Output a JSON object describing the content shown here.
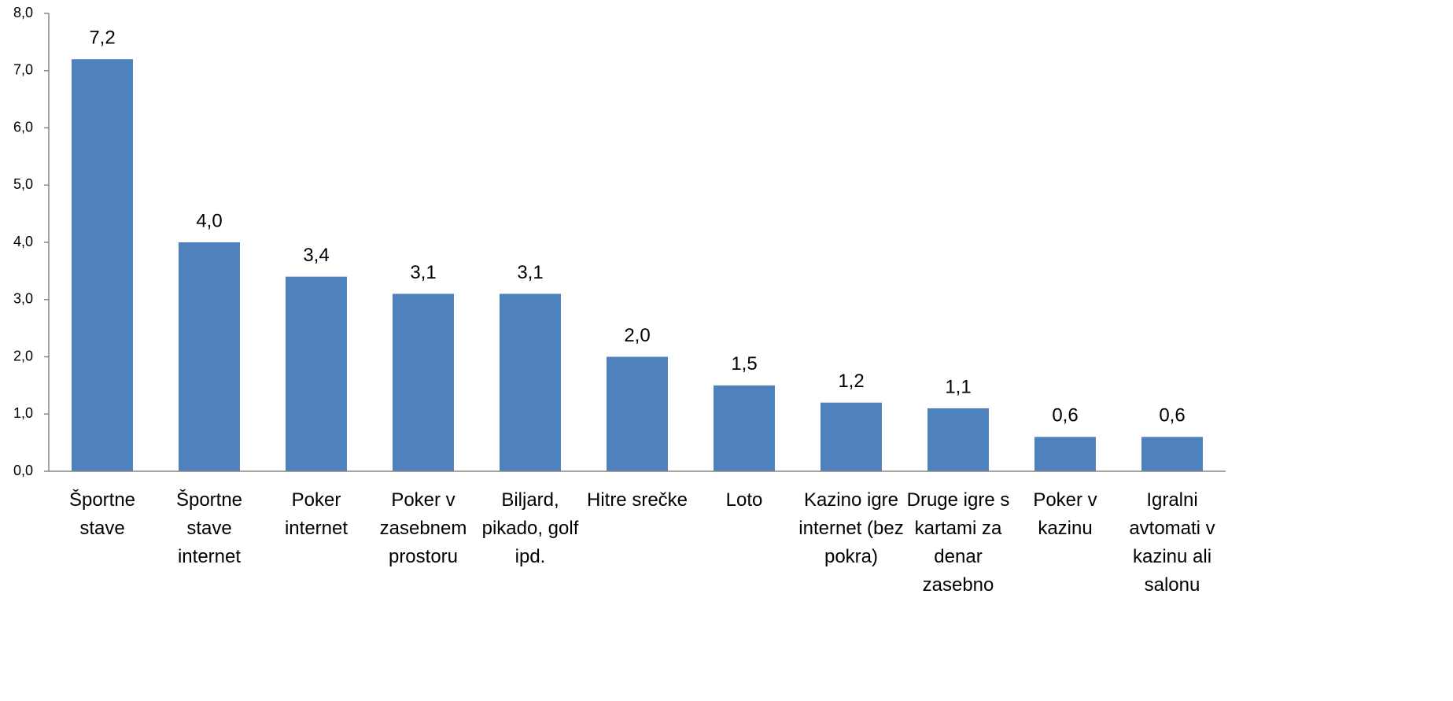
{
  "chart_data": {
    "type": "bar",
    "categories": [
      "Športne stave",
      "Športne stave internet",
      "Poker internet",
      "Poker v zasebnem prostoru",
      "Biljard, pikado, golf ipd.",
      "Hitre srečke",
      "Loto",
      "Kazino igre internet (bez pokra)",
      "Druge igre s kartami za denar zasebno",
      "Poker v kazinu",
      "Igralni avtomati v kazinu ali salonu"
    ],
    "values": [
      7.2,
      4.0,
      3.4,
      3.1,
      3.1,
      2.0,
      1.5,
      1.2,
      1.1,
      0.6,
      0.6
    ],
    "value_labels": [
      "7,2",
      "4,0",
      "3,4",
      "3,1",
      "3,1",
      "2,0",
      "1,5",
      "1,2",
      "1,1",
      "0,6",
      "0,6"
    ],
    "color": "#4f81bd",
    "ylim": [
      0,
      8
    ],
    "yticks": [
      {
        "value": 0,
        "label": "0,0"
      },
      {
        "value": 1,
        "label": "1,0"
      },
      {
        "value": 2,
        "label": "2,0"
      },
      {
        "value": 3,
        "label": "3,0"
      },
      {
        "value": 4,
        "label": "4,0"
      },
      {
        "value": 5,
        "label": "5,0"
      },
      {
        "value": 6,
        "label": "6,0"
      },
      {
        "value": 7,
        "label": "7,0"
      },
      {
        "value": 8,
        "label": "8,0"
      }
    ]
  }
}
